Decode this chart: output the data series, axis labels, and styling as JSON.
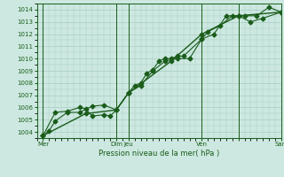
{
  "xlabel": "Pression niveau de la mer( hPa )",
  "bg_color": "#cce8e0",
  "grid_color": "#a8ccc4",
  "line_color": "#1a5c1a",
  "dark_vline_color": "#1a5c1a",
  "ylim": [
    1003.5,
    1014.5
  ],
  "yticks": [
    1004,
    1005,
    1006,
    1007,
    1008,
    1009,
    1010,
    1011,
    1012,
    1013,
    1014
  ],
  "xlim": [
    0,
    20
  ],
  "xtick_positions": [
    0.5,
    6.5,
    7.5,
    13.5,
    16.5,
    20.0
  ],
  "xtick_labels": [
    "Mer",
    "Dim",
    "Jeu",
    "Ven",
    "",
    "Sam"
  ],
  "vline_positions": [
    0.5,
    6.5,
    7.5,
    13.5,
    16.5,
    20.0
  ],
  "line1_x": [
    0.5,
    1.0,
    1.5,
    2.5,
    3.5,
    4.5,
    5.5,
    6.5,
    7.5,
    8.0,
    8.5,
    9.0,
    9.5,
    10.0,
    10.5,
    11.0,
    11.5,
    12.0,
    13.5,
    14.0,
    15.0,
    16.0,
    16.5,
    17.0,
    18.0,
    19.0,
    20.0
  ],
  "line1_y": [
    1003.7,
    1004.1,
    1004.9,
    1005.6,
    1005.6,
    1006.1,
    1006.2,
    1005.8,
    1007.2,
    1007.8,
    1008.0,
    1008.8,
    1009.1,
    1009.8,
    1010.0,
    1010.0,
    1010.2,
    1010.2,
    1011.6,
    1012.2,
    1012.7,
    1013.5,
    1013.5,
    1013.5,
    1013.5,
    1014.2,
    1013.8
  ],
  "line2_x": [
    0.5,
    1.5,
    2.5,
    3.5,
    4.0,
    4.5,
    5.5,
    6.0,
    6.5,
    7.5,
    8.5,
    9.5,
    10.5,
    11.5,
    12.5,
    13.5,
    14.5,
    15.5,
    16.5,
    17.5,
    18.5,
    20.0
  ],
  "line2_y": [
    1003.7,
    1005.6,
    1005.7,
    1006.0,
    1005.9,
    1005.3,
    1005.4,
    1005.3,
    1005.8,
    1007.2,
    1007.8,
    1009.0,
    1009.8,
    1010.0,
    1010.0,
    1011.6,
    1012.0,
    1013.5,
    1013.5,
    1013.0,
    1013.3,
    1013.8
  ],
  "line3_x": [
    0.5,
    4.0,
    6.5,
    7.5,
    11.0,
    13.5,
    16.5,
    20.0
  ],
  "line3_y": [
    1003.7,
    1005.5,
    1005.8,
    1007.2,
    1009.8,
    1012.0,
    1013.5,
    1013.8
  ],
  "marker_size": 2.5,
  "linewidth": 0.8
}
